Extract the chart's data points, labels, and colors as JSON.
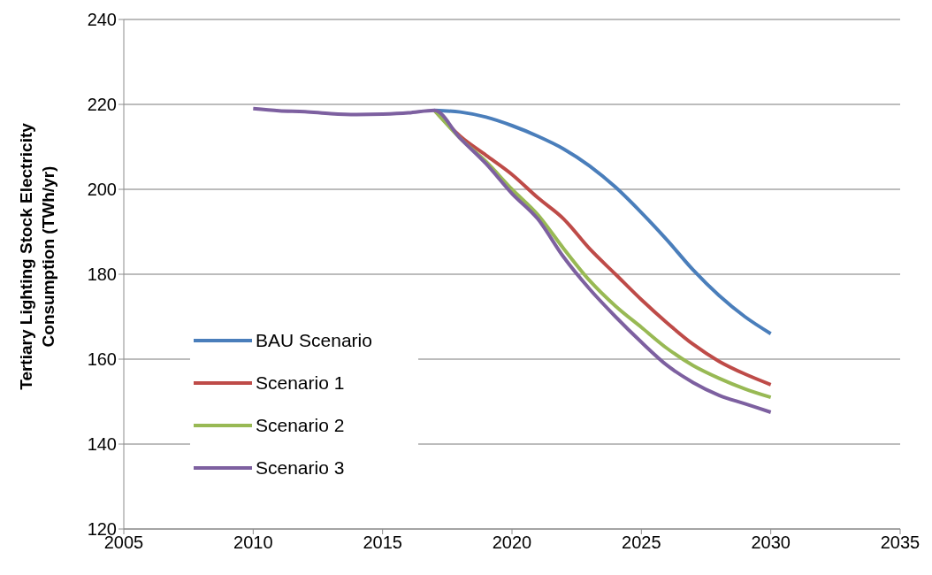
{
  "chart_data": {
    "type": "line",
    "ylabel": "Tertiary Lighting Stock Electricity Consumption (TWh/yr)",
    "x": [
      2010,
      2011,
      2012,
      2013,
      2014,
      2015,
      2016,
      2017,
      2018,
      2019,
      2020,
      2021,
      2022,
      2023,
      2024,
      2025,
      2026,
      2027,
      2028,
      2029,
      2030
    ],
    "series": [
      {
        "name": "BAU Scenario",
        "color": "#4a7ebb",
        "values": [
          null,
          null,
          null,
          null,
          null,
          null,
          null,
          218.6,
          218.2,
          217,
          215,
          212.5,
          209.5,
          205.5,
          200.5,
          194.5,
          188,
          181,
          175,
          170,
          166
        ]
      },
      {
        "name": "Scenario 1",
        "color": "#be4b48",
        "values": [
          null,
          null,
          null,
          null,
          null,
          null,
          null,
          218.6,
          212.5,
          208,
          203.5,
          198,
          193,
          186,
          180,
          174,
          168.5,
          163.5,
          159.5,
          156.5,
          154
        ]
      },
      {
        "name": "Scenario 2",
        "color": "#98b954",
        "values": [
          null,
          null,
          null,
          null,
          null,
          null,
          null,
          218.6,
          212,
          206.5,
          200,
          194,
          186,
          178.5,
          172.5,
          167.5,
          162.5,
          158.5,
          155.5,
          153,
          151
        ]
      },
      {
        "name": "Scenario 3",
        "color": "#7d60a0",
        "values": [
          219,
          218.5,
          218.3,
          217.8,
          217.6,
          217.7,
          218,
          218.6,
          212,
          206,
          199,
          193,
          184,
          176.5,
          170,
          164,
          158.5,
          154.5,
          151.5,
          149.5,
          147.5
        ]
      }
    ],
    "xlim": [
      2005,
      2035
    ],
    "xticks": [
      2005,
      2010,
      2015,
      2020,
      2025,
      2030,
      2035
    ],
    "ylim": [
      120,
      240
    ],
    "yticks": [
      120,
      140,
      160,
      180,
      200,
      220,
      240
    ],
    "grid": "y",
    "legend": "bottom left",
    "marker": "none",
    "line_style": "solid"
  }
}
